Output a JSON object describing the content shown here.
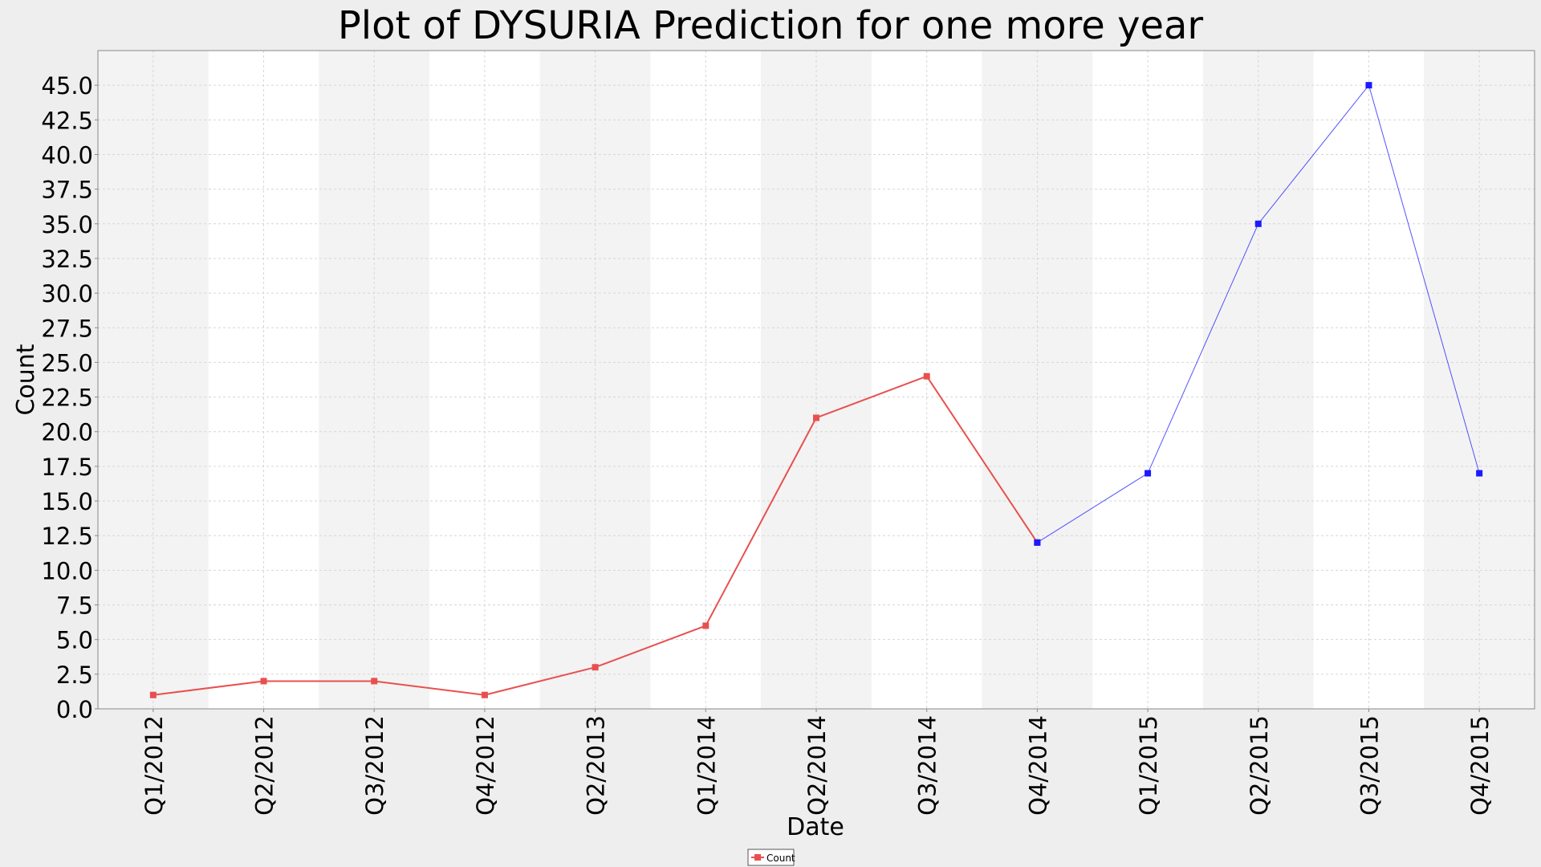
{
  "chart_data": {
    "type": "line",
    "title": "Plot of DYSURIA Prediction for one more year",
    "xlabel": "Date",
    "ylabel": "Count",
    "categories": [
      "Q1/2012",
      "Q2/2012",
      "Q3/2012",
      "Q4/2012",
      "Q2/2013",
      "Q1/2014",
      "Q2/2014",
      "Q3/2014",
      "Q4/2014",
      "Q1/2015",
      "Q2/2015",
      "Q3/2015",
      "Q4/2015"
    ],
    "ylim": [
      0,
      47.5
    ],
    "yticks": [
      "0.0",
      "2.5",
      "5.0",
      "7.5",
      "10.0",
      "12.5",
      "15.0",
      "17.5",
      "20.0",
      "22.5",
      "25.0",
      "27.5",
      "30.0",
      "32.5",
      "35.0",
      "37.5",
      "40.0",
      "42.5",
      "45.0"
    ],
    "grid": true,
    "legend_position": "bottom-center",
    "series": [
      {
        "name": "Count",
        "color": "#e8504f",
        "values": [
          1,
          2,
          2,
          1,
          3,
          6,
          21,
          24,
          12,
          null,
          null,
          null,
          null
        ]
      },
      {
        "color": "#1a1aff",
        "values": [
          null,
          null,
          null,
          null,
          null,
          null,
          null,
          null,
          12,
          17,
          35,
          45,
          17
        ]
      }
    ]
  }
}
